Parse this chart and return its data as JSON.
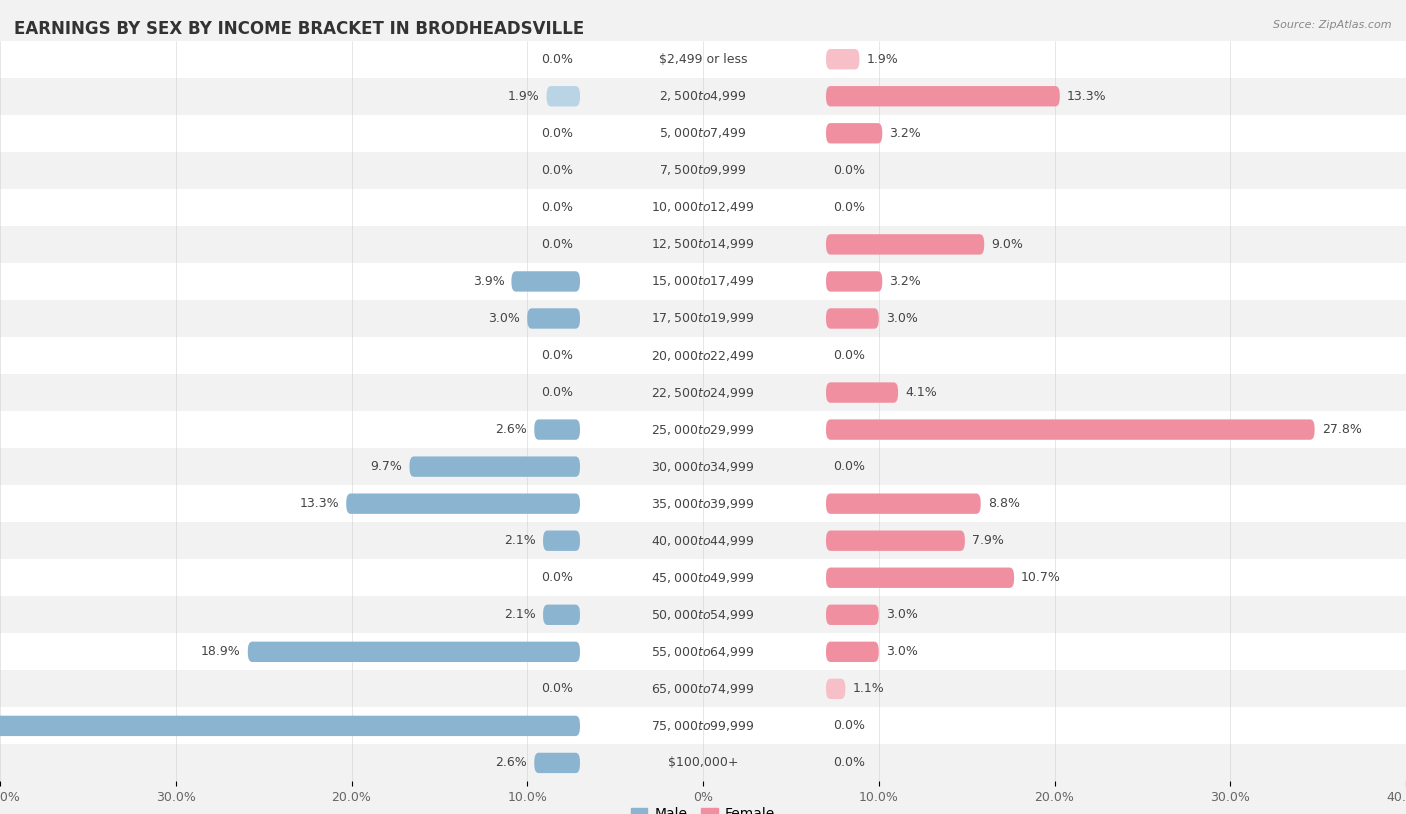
{
  "title": "EARNINGS BY SEX BY INCOME BRACKET IN BRODHEADSVILLE",
  "source": "Source: ZipAtlas.com",
  "categories": [
    "$2,499 or less",
    "$2,500 to $4,999",
    "$5,000 to $7,499",
    "$7,500 to $9,999",
    "$10,000 to $12,499",
    "$12,500 to $14,999",
    "$15,000 to $17,499",
    "$17,500 to $19,999",
    "$20,000 to $22,499",
    "$22,500 to $24,999",
    "$25,000 to $29,999",
    "$30,000 to $34,999",
    "$35,000 to $39,999",
    "$40,000 to $44,999",
    "$45,000 to $49,999",
    "$50,000 to $54,999",
    "$55,000 to $64,999",
    "$65,000 to $74,999",
    "$75,000 to $99,999",
    "$100,000+"
  ],
  "male": [
    0.0,
    1.9,
    0.0,
    0.0,
    0.0,
    0.0,
    3.9,
    3.0,
    0.0,
    0.0,
    2.6,
    9.7,
    13.3,
    2.1,
    0.0,
    2.1,
    18.9,
    0.0,
    39.9,
    2.6
  ],
  "female": [
    1.9,
    13.3,
    3.2,
    0.0,
    0.0,
    9.0,
    3.2,
    3.0,
    0.0,
    4.1,
    27.8,
    0.0,
    8.8,
    7.9,
    10.7,
    3.0,
    3.0,
    1.1,
    0.0,
    0.0
  ],
  "male_color": "#8ab4cf",
  "female_color": "#f08fa0",
  "male_color_light": "#b8d4e5",
  "female_color_light": "#f7bfc8",
  "male_label": "Male",
  "female_label": "Female",
  "xlim": 40.0,
  "bg_color": "#f2f2f2",
  "row_alt_color": "#ffffff",
  "title_fontsize": 12,
  "label_fontsize": 9,
  "tick_fontsize": 9,
  "value_fontsize": 9
}
